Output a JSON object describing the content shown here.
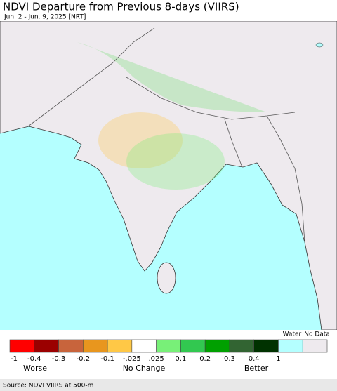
{
  "header": {
    "title": "NDVI Departure from Previous 8-days (VIIRS)",
    "subtitle": "Jun. 2 - Jun. 9, 2025 [NRT]"
  },
  "legend": {
    "swatches": [
      {
        "color": "#ff0000"
      },
      {
        "color": "#9b0000"
      },
      {
        "color": "#c8643c"
      },
      {
        "color": "#e8961e"
      },
      {
        "color": "#ffc846"
      },
      {
        "color": "#ffffff"
      },
      {
        "color": "#78f078"
      },
      {
        "color": "#32c850"
      },
      {
        "color": "#00a000"
      },
      {
        "color": "#326432"
      },
      {
        "color": "#003200"
      },
      {
        "color": "#b4ffff",
        "label": "Water"
      },
      {
        "color": "#eeeaee",
        "label": "No Data"
      }
    ],
    "ticks": [
      "-1",
      "-0.4",
      "-0.3",
      "-0.2",
      "-0.1",
      "-.025",
      ".025",
      "0.1",
      "0.2",
      "0.3",
      "0.4",
      "1"
    ],
    "captions": [
      "Worse",
      "No Change",
      "Better"
    ]
  },
  "footer": {
    "source": "Source: NDVI VIIRS at 500-m"
  }
}
